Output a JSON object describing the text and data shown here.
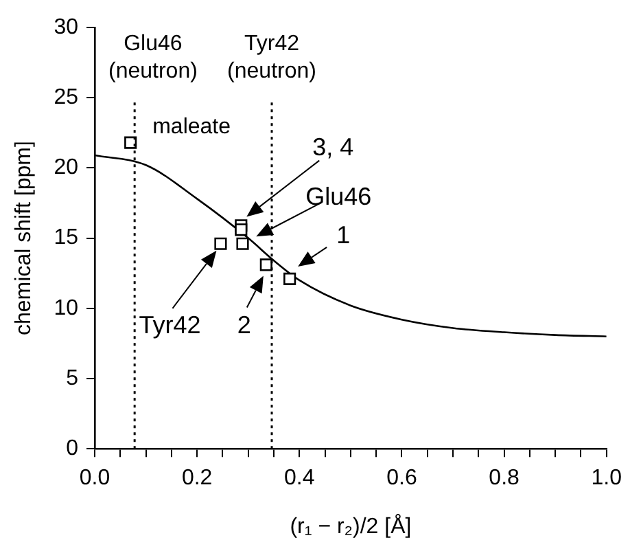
{
  "chart_data": {
    "type": "scatter",
    "xlabel": "(r₁ − r₂)/2 [Å]",
    "ylabel": "chemical shift [ppm]",
    "xlim": [
      0,
      1
    ],
    "ylim": [
      0,
      30
    ],
    "xticks": [
      {
        "value": 0,
        "label": "0.0"
      },
      {
        "value": 0.05,
        "label": null
      },
      {
        "value": 0.1,
        "label": null
      },
      {
        "value": 0.15,
        "label": null
      },
      {
        "value": 0.2,
        "label": "0.2"
      },
      {
        "value": 0.25,
        "label": null
      },
      {
        "value": 0.3,
        "label": null
      },
      {
        "value": 0.35,
        "label": null
      },
      {
        "value": 0.4,
        "label": "0.4"
      },
      {
        "value": 0.45,
        "label": null
      },
      {
        "value": 0.5,
        "label": null
      },
      {
        "value": 0.55,
        "label": null
      },
      {
        "value": 0.6,
        "label": "0.6"
      },
      {
        "value": 0.65,
        "label": null
      },
      {
        "value": 0.7,
        "label": null
      },
      {
        "value": 0.75,
        "label": null
      },
      {
        "value": 0.8,
        "label": "0.8"
      },
      {
        "value": 0.85,
        "label": null
      },
      {
        "value": 0.9,
        "label": null
      },
      {
        "value": 0.95,
        "label": null
      },
      {
        "value": 1,
        "label": "1.0"
      }
    ],
    "yticks": [
      0,
      5,
      10,
      15,
      20,
      25,
      30
    ],
    "grid": false,
    "legend": false,
    "marker": "square",
    "series": [
      {
        "color": "#000000",
        "x": [
          0.07,
          0.246,
          0.286,
          0.286,
          0.289,
          0.335,
          0.381
        ],
        "values": [
          21.8,
          14.6,
          15.9,
          15.6,
          14.6,
          13.1,
          12.1
        ]
      },
      {
        "type": "line",
        "color": "#000000",
        "marker": "none",
        "line_style": "solid",
        "x": [
          0,
          0.1,
          0.2,
          0.3,
          0.35,
          0.4,
          0.5,
          0.6,
          0.7,
          0.8,
          0.9,
          1.0
        ],
        "values": [
          20.9,
          20.2,
          17.8,
          15.0,
          13.4,
          12.0,
          10.2,
          9.2,
          8.6,
          8.3,
          8.1,
          8.0
        ]
      }
    ],
    "ref_lines": [
      {
        "axis": "x",
        "value": 0.078,
        "label": "Glu46\n(neutron)",
        "line_style": "dotted",
        "color": "#000000"
      },
      {
        "axis": "x",
        "value": 0.346,
        "label": "Tyr42\n(neutron)",
        "line_style": "dotted",
        "color": "#000000"
      }
    ],
    "annotations": [
      {
        "text": "maleate",
        "x": 0.07,
        "y": 21.8
      },
      "3, 4",
      {
        "text": "Glu46",
        "x": 0.286,
        "y": 15.6
      },
      {
        "text": "1",
        "x": 0.381,
        "y": 12.1
      },
      {
        "text": "Tyr42",
        "x": 0.246,
        "y": 14.6
      },
      {
        "text": "2",
        "x": 0.335,
        "y": 13.1
      }
    ]
  }
}
